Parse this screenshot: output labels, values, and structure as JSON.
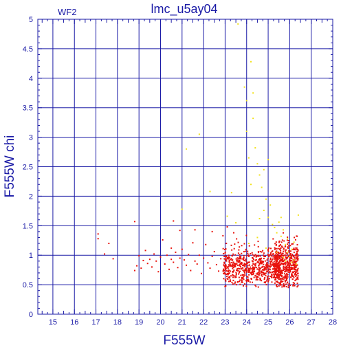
{
  "chart_data": {
    "type": "scatter",
    "title": "lmc_u5ay04",
    "annotation": "WF2",
    "xlabel": "F555W",
    "ylabel": "F555W  chi",
    "xlim": [
      14.3,
      28
    ],
    "ylim": [
      0,
      5
    ],
    "x_ticks": [
      15,
      16,
      17,
      18,
      19,
      20,
      21,
      22,
      23,
      24,
      25,
      26,
      27,
      28
    ],
    "y_ticks": [
      0,
      0.5,
      1,
      1.5,
      2,
      2.5,
      3,
      3.5,
      4,
      4.5,
      5
    ],
    "x_tick_labels": [
      "15",
      "16",
      "17",
      "18",
      "19",
      "20",
      "21",
      "22",
      "23",
      "24",
      "25",
      "26",
      "27",
      "28"
    ],
    "y_tick_labels": [
      "0",
      "0.5",
      "1",
      "1.5",
      "2",
      "2.5",
      "3",
      "3.5",
      "4",
      "4.5",
      "5"
    ],
    "grid": true,
    "colors": {
      "axes": "#1a1aa6",
      "series_red": "#e8120c",
      "series_yellow": "#f2e21a"
    },
    "series": [
      {
        "color": "#e8120c",
        "points": [
          [
            17.1,
            1.36
          ],
          [
            17.1,
            1.28
          ],
          [
            17.4,
            1.02
          ],
          [
            17.6,
            1.2
          ],
          [
            17.8,
            0.94
          ],
          [
            18.8,
            1.57
          ],
          [
            18.9,
            0.82
          ],
          [
            18.8,
            0.74
          ],
          [
            19.0,
            0.99
          ],
          [
            19.1,
            0.78
          ],
          [
            19.2,
            0.91
          ],
          [
            19.3,
            1.08
          ],
          [
            19.4,
            0.86
          ],
          [
            19.5,
            0.93
          ],
          [
            19.6,
            0.8
          ],
          [
            19.7,
            1.02
          ],
          [
            19.8,
            0.9
          ],
          [
            19.9,
            0.72
          ],
          [
            20.0,
            0.97
          ],
          [
            20.1,
            1.26
          ],
          [
            20.2,
            0.85
          ],
          [
            20.3,
            1.0
          ],
          [
            20.4,
            0.76
          ],
          [
            20.5,
            0.93
          ],
          [
            20.5,
            1.12
          ],
          [
            20.6,
            0.88
          ],
          [
            20.7,
            1.05
          ],
          [
            20.8,
            0.79
          ],
          [
            20.9,
            0.95
          ],
          [
            20.9,
            1.42
          ],
          [
            21.0,
            1.1
          ],
          [
            21.1,
            0.92
          ],
          [
            21.2,
            0.83
          ],
          [
            21.3,
            1.01
          ],
          [
            21.4,
            0.74
          ],
          [
            21.5,
            1.21
          ],
          [
            21.6,
            0.9
          ],
          [
            21.7,
            0.85
          ],
          [
            21.8,
            1.0
          ],
          [
            21.9,
            0.69
          ],
          [
            22.0,
            0.95
          ],
          [
            22.1,
            1.18
          ],
          [
            22.2,
            0.87
          ],
          [
            22.3,
            0.78
          ],
          [
            22.4,
            0.98
          ],
          [
            22.5,
            1.06
          ],
          [
            22.6,
            0.84
          ],
          [
            22.7,
            0.73
          ],
          [
            22.8,
            0.94
          ],
          [
            22.9,
            1.33
          ],
          [
            20.6,
            1.58
          ],
          [
            21.6,
            1.43
          ],
          [
            22.4,
            1.4
          ],
          [
            23.1,
            1.48
          ],
          [
            23.4,
            1.38
          ]
        ],
        "dense_clusters": [
          {
            "x_range": [
              22.9,
              25.6
            ],
            "y_center": 0.8,
            "y_spread": 0.16,
            "count": 650
          },
          {
            "x_range": [
              25.3,
              26.4
            ],
            "y_center": 0.82,
            "y_spread": 0.2,
            "count": 500
          }
        ]
      },
      {
        "color": "#f2e21a",
        "points": [
          [
            21.2,
            2.8
          ],
          [
            21.8,
            3.05
          ],
          [
            22.3,
            2.08
          ],
          [
            23.3,
            2.06
          ],
          [
            23.6,
            4.92
          ],
          [
            23.9,
            3.85
          ],
          [
            24.0,
            3.62
          ],
          [
            24.0,
            3.1
          ],
          [
            24.1,
            2.65
          ],
          [
            24.2,
            4.28
          ],
          [
            24.3,
            3.75
          ],
          [
            24.3,
            3.32
          ],
          [
            24.2,
            2.2
          ],
          [
            24.4,
            2.82
          ],
          [
            24.5,
            2.55
          ],
          [
            24.6,
            2.36
          ],
          [
            24.7,
            2.15
          ],
          [
            24.8,
            2.45
          ],
          [
            24.9,
            1.95
          ],
          [
            25.0,
            2.62
          ],
          [
            25.1,
            1.85
          ],
          [
            24.6,
            1.62
          ],
          [
            24.8,
            1.76
          ],
          [
            25.0,
            1.64
          ],
          [
            25.2,
            1.52
          ],
          [
            25.3,
            1.47
          ],
          [
            25.4,
            1.38
          ],
          [
            25.5,
            1.56
          ],
          [
            25.6,
            1.32
          ],
          [
            25.7,
            1.43
          ],
          [
            25.8,
            1.18
          ],
          [
            25.9,
            1.05
          ],
          [
            26.0,
            0.98
          ],
          [
            26.1,
            1.1
          ],
          [
            26.2,
            0.92
          ],
          [
            26.3,
            0.85
          ],
          [
            26.2,
            1.22
          ],
          [
            26.4,
            1.68
          ],
          [
            25.6,
            1.64
          ],
          [
            25.9,
            1.28
          ],
          [
            24.1,
            1.2
          ],
          [
            24.5,
            1.3
          ],
          [
            21.0,
            1.78
          ],
          [
            23.1,
            1.66
          ],
          [
            23.5,
            1.55
          ],
          [
            24.9,
            1.12
          ],
          [
            25.4,
            1.05
          ],
          [
            25.7,
            0.96
          ],
          [
            26.1,
            0.88
          ],
          [
            25.8,
            0.9
          ]
        ]
      }
    ]
  }
}
